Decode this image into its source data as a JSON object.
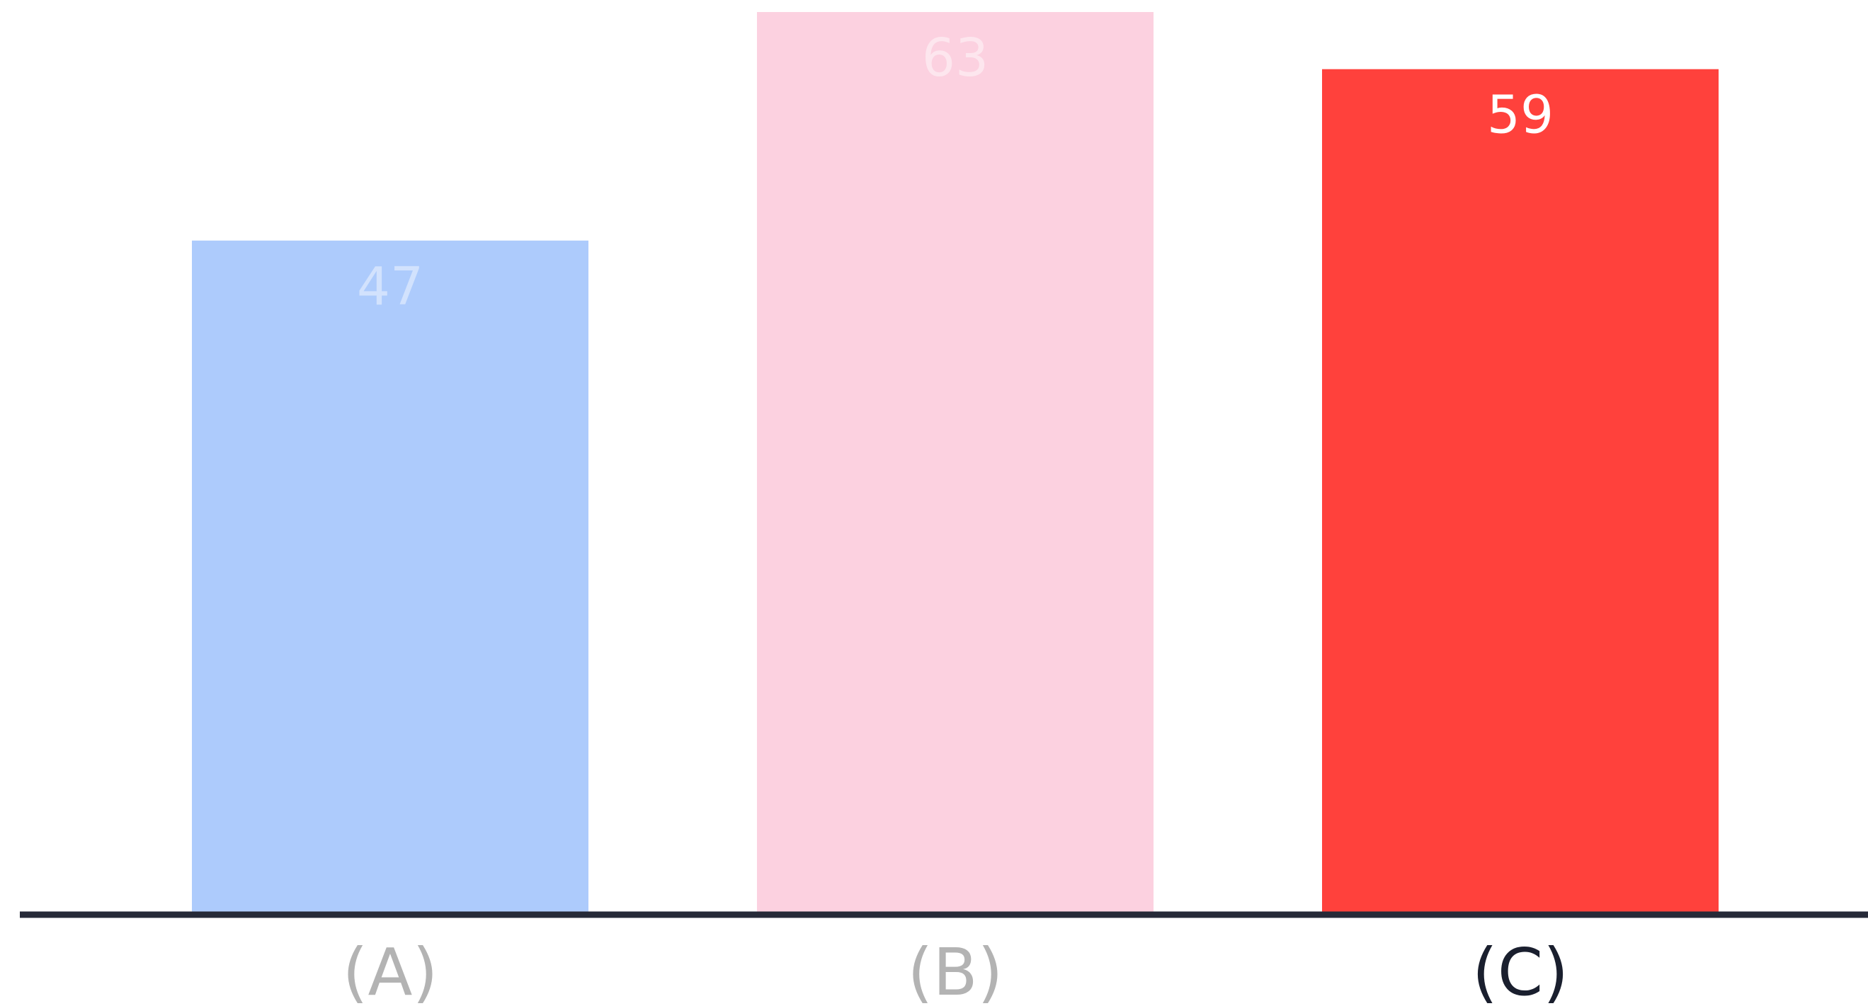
{
  "chart_data": {
    "type": "bar",
    "categories": [
      "(A)",
      "(B)",
      "(C)"
    ],
    "values": [
      47,
      63,
      59
    ],
    "value_labels": [
      "47",
      "63",
      "59"
    ],
    "bar_colors": [
      "#adcbfc",
      "#fcd1e0",
      "#ff413c"
    ],
    "value_label_colors": [
      "#d2e2fd",
      "#fde6ee",
      "#ffffff"
    ],
    "tick_label_colors": [
      "#b3b3b3",
      "#b3b3b3",
      "#1a1f2e"
    ],
    "axis_color": "#262a38",
    "ylim": [
      0,
      63
    ],
    "grid": false,
    "legend": "none",
    "title": "",
    "xlabel": "",
    "ylabel": ""
  }
}
